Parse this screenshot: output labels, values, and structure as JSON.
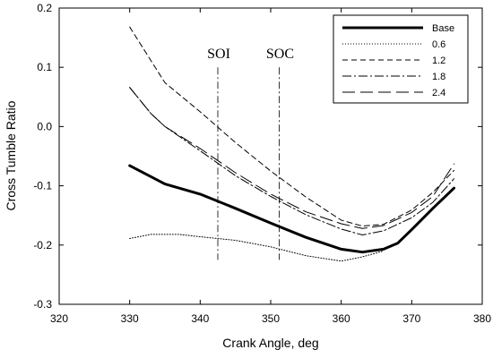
{
  "chart_data": {
    "type": "line",
    "xlabel": "Crank Angle, deg",
    "ylabel": "Cross Tumble Ratio",
    "xlim": [
      320,
      380
    ],
    "ylim": [
      -0.3,
      0.2
    ],
    "x_ticks": [
      320,
      330,
      340,
      350,
      360,
      370,
      380
    ],
    "y_ticks": [
      -0.3,
      -0.2,
      -0.1,
      0.0,
      0.1,
      0.2
    ],
    "x_tick_labels": [
      "320",
      "330",
      "340",
      "350",
      "360",
      "370",
      "380"
    ],
    "y_tick_labels": [
      "-0.3",
      "-0.2",
      "-0.1",
      "0.0",
      "0.1",
      "0.2"
    ],
    "grid": false,
    "legend_position": "top-right",
    "series": [
      {
        "name": "Base",
        "style": "solid-thick",
        "points": [
          [
            330,
            -0.066
          ],
          [
            335,
            -0.097
          ],
          [
            340,
            -0.114
          ],
          [
            345,
            -0.138
          ],
          [
            350,
            -0.163
          ],
          [
            355,
            -0.187
          ],
          [
            360,
            -0.207
          ],
          [
            363,
            -0.212
          ],
          [
            366,
            -0.207
          ],
          [
            368,
            -0.197
          ],
          [
            370,
            -0.174
          ],
          [
            373,
            -0.138
          ],
          [
            376,
            -0.104
          ]
        ]
      },
      {
        "name": "0.6",
        "style": "dotted",
        "points": [
          [
            330,
            -0.189
          ],
          [
            333,
            -0.182
          ],
          [
            337,
            -0.182
          ],
          [
            340,
            -0.186
          ],
          [
            345,
            -0.192
          ],
          [
            350,
            -0.203
          ],
          [
            355,
            -0.218
          ],
          [
            360,
            -0.227
          ],
          [
            363,
            -0.22
          ],
          [
            366,
            -0.21
          ]
        ]
      },
      {
        "name": "1.2",
        "style": "short-dash",
        "points": [
          [
            330,
            0.168
          ],
          [
            335,
            0.074
          ],
          [
            340,
            0.025
          ],
          [
            345,
            -0.027
          ],
          [
            350,
            -0.075
          ],
          [
            355,
            -0.119
          ],
          [
            360,
            -0.158
          ],
          [
            363,
            -0.168
          ],
          [
            366,
            -0.165
          ],
          [
            370,
            -0.141
          ],
          [
            373,
            -0.111
          ],
          [
            376,
            -0.074
          ]
        ]
      },
      {
        "name": "1.8",
        "style": "dash-dot",
        "points": [
          [
            330,
            0.066
          ],
          [
            333,
            0.022
          ],
          [
            335,
            0.0
          ],
          [
            340,
            -0.041
          ],
          [
            345,
            -0.083
          ],
          [
            350,
            -0.118
          ],
          [
            355,
            -0.149
          ],
          [
            360,
            -0.173
          ],
          [
            363,
            -0.183
          ],
          [
            366,
            -0.176
          ],
          [
            370,
            -0.154
          ],
          [
            373,
            -0.128
          ],
          [
            376,
            -0.088
          ]
        ]
      },
      {
        "name": "2.4",
        "style": "long-dash",
        "points": [
          [
            330,
            0.066
          ],
          [
            333,
            0.022
          ],
          [
            335,
            0.0
          ],
          [
            340,
            -0.037
          ],
          [
            345,
            -0.078
          ],
          [
            350,
            -0.114
          ],
          [
            355,
            -0.144
          ],
          [
            360,
            -0.164
          ],
          [
            363,
            -0.172
          ],
          [
            366,
            -0.167
          ],
          [
            370,
            -0.145
          ],
          [
            373,
            -0.118
          ],
          [
            376,
            -0.063
          ]
        ]
      }
    ],
    "annotations": [
      {
        "label": "SOI",
        "x": 342.5,
        "y_range": [
          -0.225,
          0.1
        ]
      },
      {
        "label": "SOC",
        "x": 351.2,
        "y_range": [
          -0.225,
          0.1
        ]
      }
    ]
  }
}
